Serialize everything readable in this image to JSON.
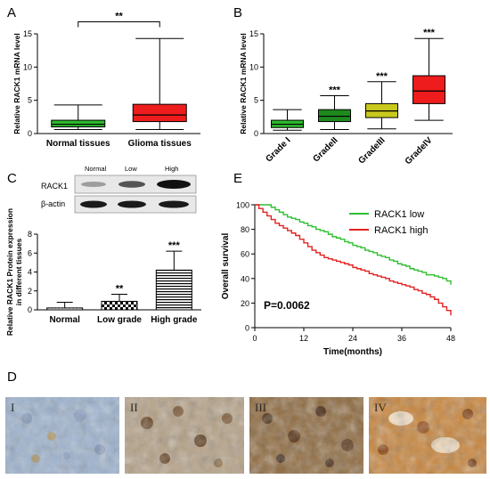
{
  "panels": {
    "A": "A",
    "B": "B",
    "C": "C",
    "D": "D",
    "E": "E"
  },
  "chart_data": [
    {
      "id": "A",
      "type": "box",
      "ylabel": "Relative RACK1 mRNA level",
      "ylim": [
        0,
        15
      ],
      "yticks": [
        0,
        5,
        10,
        15
      ],
      "categories": [
        "Normal tissues",
        "Glioma tissues"
      ],
      "boxes": [
        {
          "min": 0.6,
          "q1": 1.0,
          "median": 1.4,
          "q3": 2.0,
          "max": 4.3,
          "color": "#2db82d"
        },
        {
          "min": 0.6,
          "q1": 1.8,
          "median": 2.8,
          "q3": 4.4,
          "max": 14.3,
          "color": "#ee1c1c"
        }
      ],
      "significance": {
        "label": "**",
        "between": [
          0,
          1
        ],
        "y": 16.8
      }
    },
    {
      "id": "B",
      "type": "box",
      "ylabel": "Relative RACK1 mRNA level",
      "ylim": [
        0,
        15
      ],
      "yticks": [
        0,
        5,
        10,
        15
      ],
      "categories": [
        "Grade I",
        "GradeII",
        "GradeIII",
        "GradeIV"
      ],
      "boxes": [
        {
          "min": 0.5,
          "q1": 0.9,
          "median": 1.4,
          "q3": 2.0,
          "max": 3.6,
          "color": "#2db82d"
        },
        {
          "min": 0.6,
          "q1": 1.8,
          "median": 2.6,
          "q3": 3.6,
          "max": 5.7,
          "color": "#1e8a1e"
        },
        {
          "min": 0.7,
          "q1": 2.4,
          "median": 3.4,
          "q3": 4.5,
          "max": 7.8,
          "color": "#c8c81e"
        },
        {
          "min": 2.0,
          "q1": 4.5,
          "median": 6.4,
          "q3": 8.7,
          "max": 14.3,
          "color": "#ee1c1c"
        }
      ],
      "stars": [
        "",
        "***",
        "***",
        "***"
      ]
    },
    {
      "id": "C",
      "type": "bar",
      "ylabel_line1": "Relative RACK1  Protein expression",
      "ylabel_line2": "in different tissues",
      "ylim": [
        0,
        8
      ],
      "yticks": [
        0,
        2,
        4,
        6,
        8
      ],
      "categories": [
        "Normal",
        "Low grade",
        "High grade"
      ],
      "values": [
        0.2,
        0.9,
        4.2
      ],
      "errors": [
        0.6,
        0.75,
        2.0
      ],
      "patterns": [
        "dots",
        "checker",
        "hlines"
      ],
      "stars": [
        "",
        "**",
        "***"
      ],
      "blot": {
        "headers": [
          "Normal",
          "Low",
          "High"
        ],
        "rows": [
          "RACK1",
          "β-actin"
        ]
      }
    },
    {
      "id": "E",
      "type": "line",
      "xlabel": "Time(months)",
      "ylabel": "Overall survival",
      "xlim": [
        0,
        48
      ],
      "ylim": [
        0,
        100
      ],
      "xticks": [
        0,
        12,
        24,
        36,
        48
      ],
      "yticks": [
        0,
        20,
        40,
        60,
        80,
        100
      ],
      "annotation": "P=0.0062",
      "series": [
        {
          "name": "RACK1 low",
          "color": "#2fbf2f",
          "x": [
            0,
            3,
            4,
            5,
            6,
            7,
            8,
            9,
            10,
            11,
            12,
            13,
            14,
            15,
            16,
            17,
            18,
            19,
            20,
            21,
            22,
            23,
            24,
            25,
            26,
            27,
            28,
            29,
            30,
            31,
            32,
            33,
            34,
            35,
            36,
            37,
            38,
            39,
            40,
            41,
            42,
            43,
            44,
            45,
            46,
            47,
            48
          ],
          "y": [
            100,
            100,
            98,
            96,
            94,
            92,
            90,
            89,
            88,
            86,
            85,
            83,
            82,
            80,
            79,
            78,
            76,
            74,
            73,
            72,
            70,
            69,
            67,
            66,
            65,
            63,
            62,
            61,
            59,
            58,
            57,
            55,
            54,
            52,
            51,
            50,
            48,
            47,
            46,
            45,
            43,
            43,
            42,
            41,
            40,
            38,
            35
          ]
        },
        {
          "name": "RACK1 high",
          "color": "#e32222",
          "x": [
            0,
            1,
            2,
            3,
            4,
            5,
            6,
            7,
            8,
            9,
            10,
            11,
            12,
            13,
            14,
            15,
            16,
            17,
            18,
            19,
            20,
            21,
            22,
            23,
            24,
            25,
            26,
            27,
            28,
            29,
            30,
            31,
            32,
            33,
            34,
            35,
            36,
            37,
            38,
            39,
            40,
            41,
            42,
            43,
            44,
            45,
            46,
            47,
            48
          ],
          "y": [
            100,
            97,
            94,
            91,
            88,
            85,
            83,
            81,
            79,
            77,
            75,
            72,
            69,
            66,
            63,
            61,
            59,
            57,
            56,
            55,
            54,
            53,
            52,
            51,
            49,
            48,
            47,
            46,
            44,
            43,
            42,
            41,
            40,
            38,
            37,
            36,
            35,
            34,
            33,
            31,
            30,
            28,
            27,
            25,
            23,
            20,
            17,
            14,
            10
          ]
        }
      ]
    }
  ],
  "images": {
    "labels": [
      "I",
      "II",
      "III",
      "IV"
    ]
  }
}
